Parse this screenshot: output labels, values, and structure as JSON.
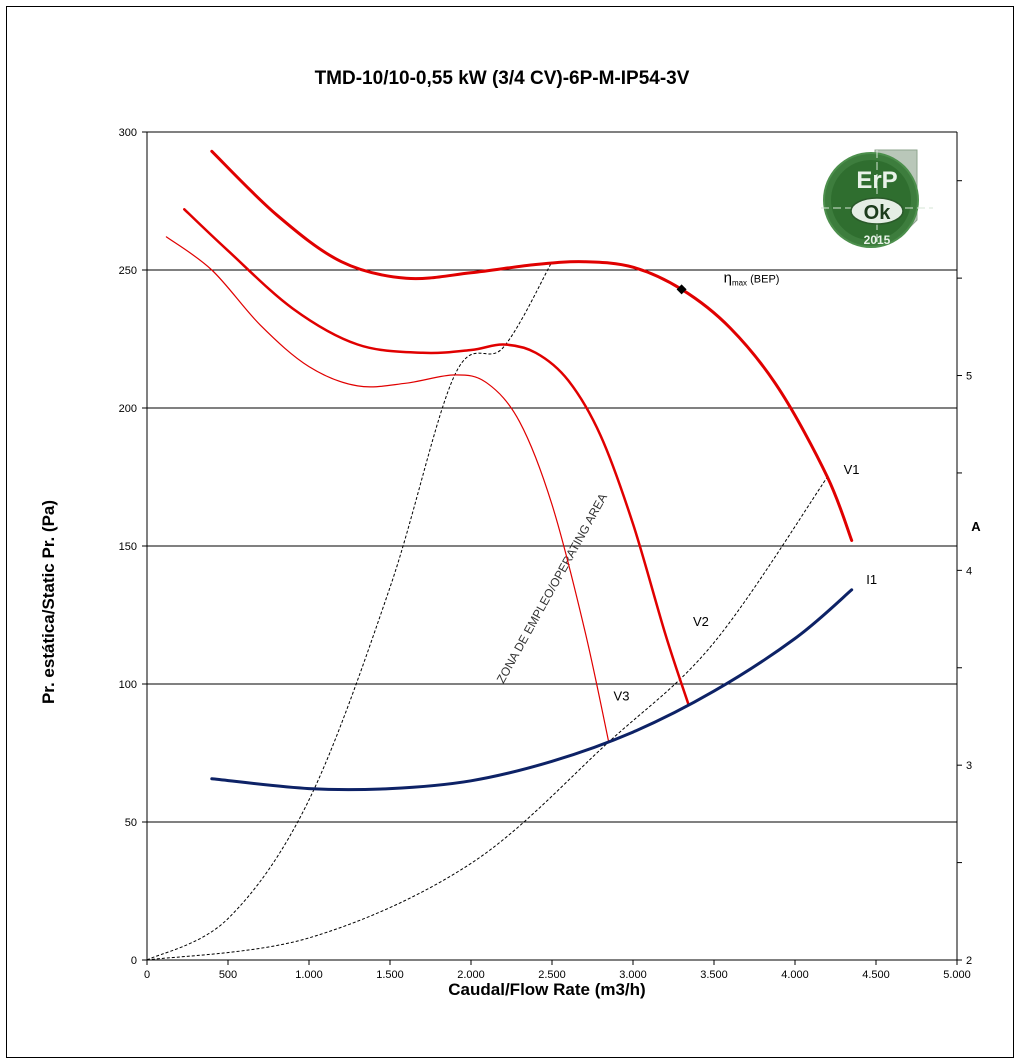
{
  "chart_data": {
    "type": "line",
    "title": "TMD-10/10-0,55 kW (3/4 CV)-6P-M-IP54-3V",
    "xlabel": "Caudal/Flow Rate (m3/h)",
    "ylabel": "Pr. estática/Static  Pr. (Pa)",
    "y2label": "A",
    "xlim": [
      0,
      5000
    ],
    "ylim": [
      0,
      300
    ],
    "y2lim": [
      2,
      6.25
    ],
    "x_ticks": [
      0,
      500,
      1000,
      1500,
      2000,
      2500,
      3000,
      3500,
      4000,
      4500,
      5000
    ],
    "x_tick_labels": [
      "0",
      "500",
      "1.000",
      "1.500",
      "2.000",
      "2.500",
      "3.000",
      "3.500",
      "4.000",
      "4.500",
      "5.000"
    ],
    "y_ticks": [
      0,
      50,
      100,
      150,
      200,
      250,
      300
    ],
    "y_tick_labels": [
      "0",
      "50",
      "100",
      "150",
      "200",
      "250",
      "300"
    ],
    "y2_ticks": [
      2,
      2.5,
      3,
      3.5,
      4,
      4.5,
      5,
      5.5,
      6
    ],
    "y2_tick_labels": [
      "2",
      "",
      "3",
      "",
      "4",
      "",
      "5",
      "",
      ""
    ],
    "grid": "horizontal",
    "series": [
      {
        "name": "V1",
        "axis": "left",
        "color": "#e00000",
        "width": 3,
        "x": [
          400,
          800,
          1200,
          1600,
          2000,
          2400,
          2700,
          3000,
          3300,
          3600,
          3900,
          4200,
          4350
        ],
        "y": [
          293,
          270,
          253,
          247,
          249,
          252,
          253,
          251,
          243,
          229,
          207,
          175,
          152
        ]
      },
      {
        "name": "V2",
        "axis": "left",
        "color": "#e00000",
        "width": 2.5,
        "x": [
          230,
          500,
          900,
          1300,
          1700,
          2000,
          2200,
          2400,
          2600,
          2800,
          3000,
          3200,
          3340
        ],
        "y": [
          272,
          257,
          236,
          223,
          220,
          221,
          223,
          220,
          210,
          190,
          158,
          118,
          93
        ]
      },
      {
        "name": "V3",
        "axis": "left",
        "color": "#e00000",
        "width": 1.2,
        "x": [
          120,
          400,
          700,
          1000,
          1300,
          1600,
          1900,
          2100,
          2300,
          2500,
          2700,
          2850
        ],
        "y": [
          262,
          250,
          230,
          215,
          208,
          209,
          212,
          209,
          195,
          165,
          120,
          79
        ]
      },
      {
        "name": "I1",
        "axis": "right",
        "color": "#0d2266",
        "width": 3,
        "x": [
          400,
          1000,
          1500,
          2000,
          2500,
          3000,
          3500,
          4000,
          4350
        ],
        "y": [
          2.93,
          2.88,
          2.88,
          2.92,
          3.02,
          3.17,
          3.38,
          3.65,
          3.9
        ]
      }
    ],
    "operating_zone": {
      "label": "ZONA DE EMPLEO/OPERATING AREA",
      "left_boundary": {
        "x": [
          0,
          500,
          1000,
          1500,
          1900,
          2200,
          2500
        ],
        "y": [
          0,
          15,
          58,
          135,
          212,
          222,
          253
        ]
      },
      "right_boundary": {
        "x": [
          0,
          1000,
          2000,
          2850,
          3500,
          4200
        ],
        "y": [
          0,
          8,
          35,
          79,
          115,
          175
        ]
      }
    },
    "annotations": [
      {
        "text": "η",
        "subscript": "max",
        "suffix": " (BEP)",
        "x": 3300,
        "y": 243,
        "marker": "diamond"
      }
    ],
    "logo": {
      "top_text": "ErP",
      "middle_text": "Ok",
      "bottom_text": "2015"
    }
  }
}
